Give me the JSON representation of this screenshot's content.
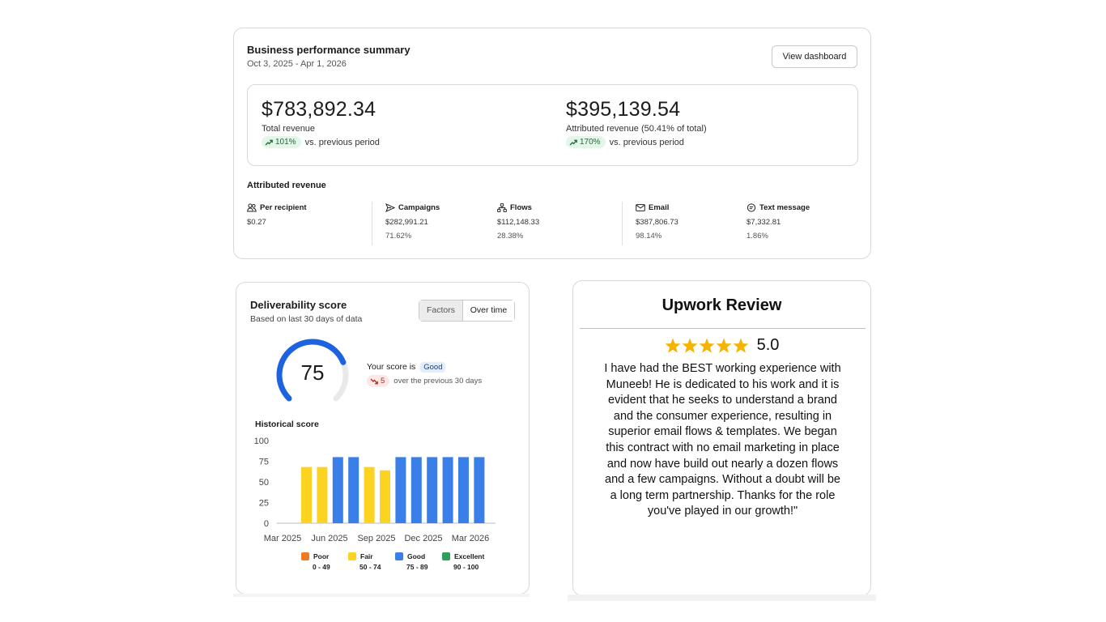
{
  "summary": {
    "title": "Business performance summary",
    "date_range": "Oct 3, 2025 - Apr 1, 2026",
    "view_button": "View dashboard",
    "total": {
      "amount": "$783,892.34",
      "label": "Total revenue",
      "change": "101%",
      "compare": "vs. previous period"
    },
    "attributed": {
      "amount": "$395,139.54",
      "label": "Attributed revenue (50.41% of total)",
      "change": "170%",
      "compare": "vs. previous period"
    },
    "attributed_title": "Attributed revenue",
    "metrics": [
      {
        "icon": "people-icon",
        "label": "Per recipient",
        "value": "$0.27",
        "pct": ""
      },
      {
        "icon": "send-icon",
        "label": "Campaigns",
        "value": "$282,991.21",
        "pct": "71.62%"
      },
      {
        "icon": "flow-icon",
        "label": "Flows",
        "value": "$112,148.33",
        "pct": "28.38%"
      },
      {
        "icon": "mail-icon",
        "label": "Email",
        "value": "$387,806.73",
        "pct": "98.14%"
      },
      {
        "icon": "chat-icon",
        "label": "Text message",
        "value": "$7,332.81",
        "pct": "1.86%"
      }
    ]
  },
  "deliverability": {
    "title": "Deliverability score",
    "subtitle": "Based on last 30 days of data",
    "toggle": {
      "factors": "Factors",
      "over_time": "Over time"
    },
    "score": "75",
    "score_value": 75,
    "score_text": "Your score is",
    "score_badge": "Good",
    "delta": "5",
    "delta_text": "over the previous 30 days",
    "historical_title": "Historical score",
    "legend": [
      {
        "name": "Poor",
        "range": "0 - 49",
        "color": "#f07a24"
      },
      {
        "name": "Fair",
        "range": "50 - 74",
        "color": "#fdd321"
      },
      {
        "name": "Good",
        "range": "75 - 89",
        "color": "#3a7ee8"
      },
      {
        "name": "Excellent",
        "range": "90 - 100",
        "color": "#2e9e5b"
      }
    ]
  },
  "chart_data": {
    "type": "bar",
    "title": "Historical score",
    "xlabel": "",
    "ylabel": "",
    "ylim": [
      0,
      100
    ],
    "yticks": [
      0,
      25,
      50,
      75,
      100
    ],
    "xtick_labels": [
      "Mar 2025",
      "Jun 2025",
      "Sep 2025",
      "Dec 2025",
      "Mar 2026"
    ],
    "values": [
      68,
      68,
      80,
      80,
      68,
      64,
      80,
      80,
      80,
      80,
      80,
      80
    ],
    "colors": [
      "#fdd321",
      "#fdd321",
      "#3a7ee8",
      "#3a7ee8",
      "#fdd321",
      "#fdd321",
      "#3a7ee8",
      "#3a7ee8",
      "#3a7ee8",
      "#3a7ee8",
      "#3a7ee8",
      "#3a7ee8"
    ],
    "grid": false
  },
  "review": {
    "title": "Upwork Review",
    "rating": "5.0",
    "stars": 5,
    "star_color": "#f6b300",
    "text": "I have had the BEST working experience with Muneeb! He is dedicated to his work and it is evident that he seeks to understand a brand and the consumer experience, resulting in superior email flows & templates. We began this contract with no email marketing in place and now have build out nearly a dozen flows and a few campaigns. Without a doubt will be a long term partnership. Thanks for the role you've played in our growth!\""
  }
}
